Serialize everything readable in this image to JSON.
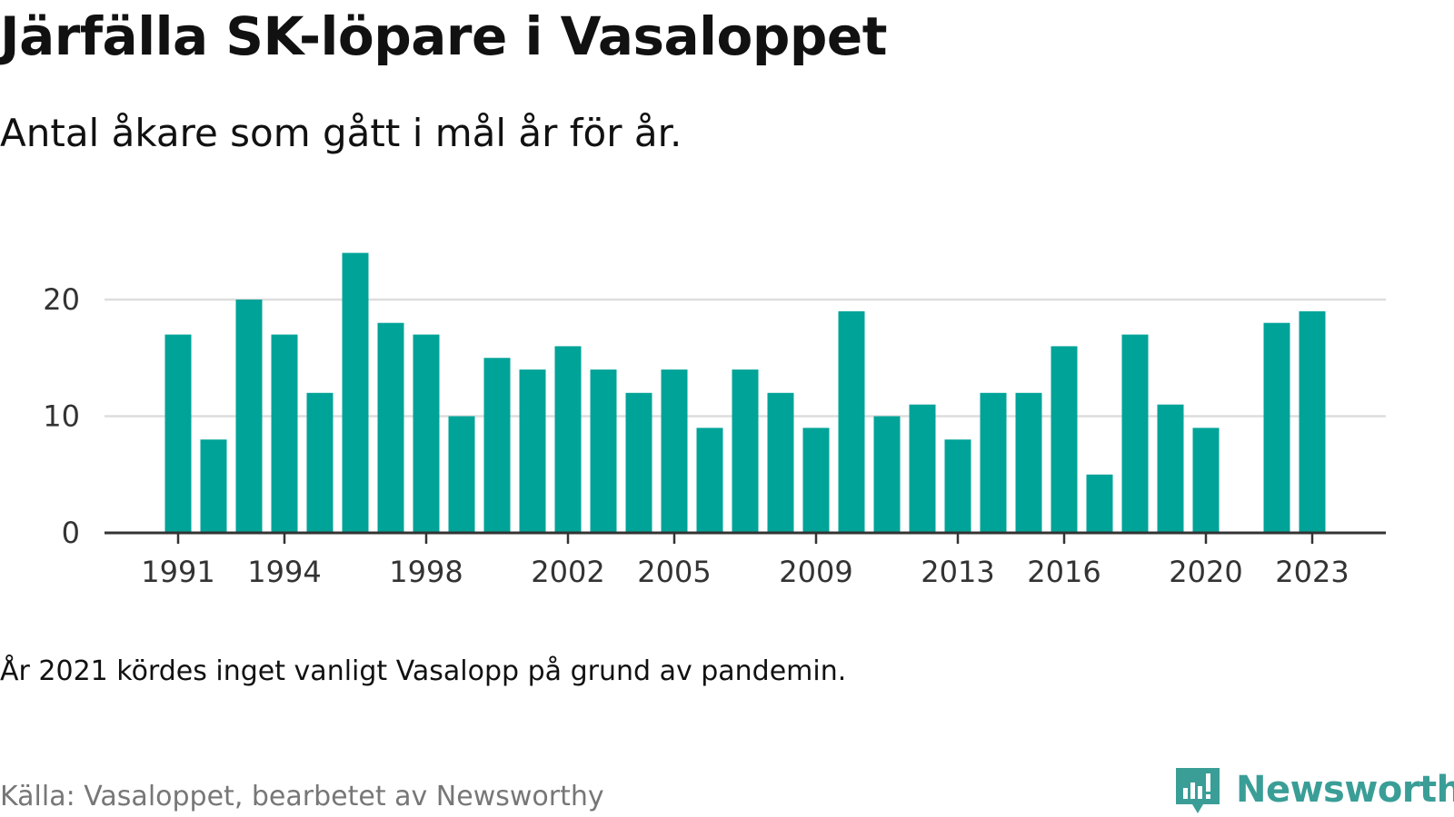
{
  "title": "Järfälla SK-löpare i Vasaloppet",
  "subtitle": "Antal åkare som gått i mål år för år.",
  "note": "År 2021 kördes inget vanligt Vasalopp på grund av pandemin.",
  "source": "Källa: Vasaloppet, bearbetet av Newsworthy",
  "brand": {
    "name": "Newsworthy",
    "icon": "newsworthy-logo-icon"
  },
  "colors": {
    "bar": "#00a398",
    "grid": "#dddddd",
    "axis": "#333333",
    "text": "#333333"
  },
  "chart_data": {
    "type": "bar",
    "title": "Järfälla SK-löpare i Vasaloppet",
    "subtitle": "Antal åkare som gått i mål år för år.",
    "xlabel": "",
    "ylabel": "",
    "categories": [
      1991,
      1992,
      1993,
      1994,
      1995,
      1996,
      1997,
      1998,
      1999,
      2000,
      2001,
      2002,
      2003,
      2004,
      2005,
      2006,
      2007,
      2008,
      2009,
      2010,
      2011,
      2012,
      2013,
      2014,
      2015,
      2016,
      2017,
      2018,
      2019,
      2020,
      2021,
      2022,
      2023
    ],
    "values": [
      17,
      8,
      20,
      17,
      12,
      24,
      18,
      17,
      10,
      15,
      14,
      16,
      14,
      12,
      14,
      9,
      14,
      12,
      9,
      19,
      10,
      11,
      8,
      12,
      12,
      16,
      5,
      17,
      11,
      9,
      null,
      18,
      19
    ],
    "x_tick_labels": [
      "1991",
      "1994",
      "1998",
      "2002",
      "2005",
      "2009",
      "2013",
      "2016",
      "2020",
      "2023"
    ],
    "y_ticks": [
      0,
      10,
      20
    ],
    "ylim": [
      0,
      24
    ],
    "grid": true,
    "legend": "none"
  }
}
